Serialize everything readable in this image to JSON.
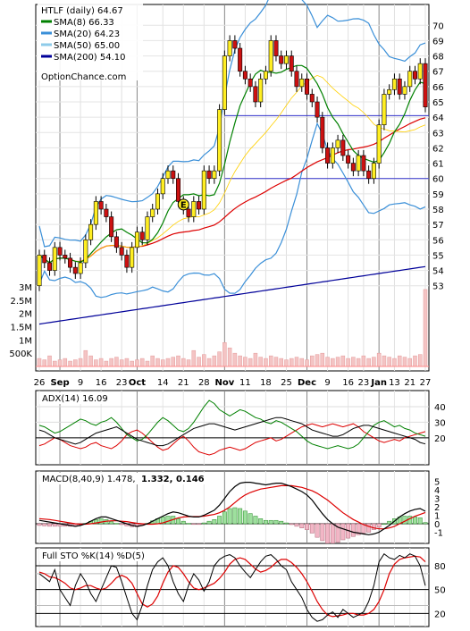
{
  "chart_data": [
    {
      "type": "candlestick",
      "panel": "price",
      "legend": [
        {
          "label": "HTLF (daily) 64.67",
          "color": null
        },
        {
          "label": "SMA(8) 66.33",
          "color": "#008000"
        },
        {
          "label": "SMA(20) 64.23",
          "color": "#3a8fd8"
        },
        {
          "label": "SMA(50) 65.00",
          "color": "#8ecbea"
        },
        {
          "label": "SMA(200) 54.10",
          "color": "#000099"
        }
      ],
      "watermark": "OptionChance.com",
      "y_ticks": [
        "70",
        "69",
        "68",
        "67",
        "66",
        "65",
        "64",
        "63",
        "62",
        "61",
        "60",
        "59",
        "58",
        "57",
        "56",
        "55",
        "54",
        "53"
      ],
      "ylim": [
        52.4,
        70.6
      ],
      "volume_ticks": [
        "3M",
        "2.5M",
        "2M",
        "1.5M",
        "1M",
        "500K"
      ],
      "x_ticks": [
        "26",
        "Sep",
        "9",
        "16",
        "23",
        "Oct",
        "14",
        "21",
        "28",
        "Nov",
        "11",
        "18",
        "25",
        "Dec",
        "9",
        "16",
        "23",
        "Jan",
        "13",
        "21",
        "27"
      ],
      "horizontal_lines": [
        64.1,
        60.0
      ],
      "earnings_marker": "E",
      "candles_open_close": [
        [
          53,
          55
        ],
        [
          55,
          54.5
        ],
        [
          54.5,
          54
        ],
        [
          54,
          55.5
        ],
        [
          55.5,
          55
        ],
        [
          55,
          54.8
        ],
        [
          54.8,
          54.2
        ],
        [
          54.2,
          53.8
        ],
        [
          53.8,
          54.5
        ],
        [
          54.5,
          56
        ],
        [
          56,
          57
        ],
        [
          57,
          58.5
        ],
        [
          58.5,
          58
        ],
        [
          58,
          57.5
        ],
        [
          57.5,
          56.2
        ],
        [
          56.2,
          55.5
        ],
        [
          55.5,
          55
        ],
        [
          55,
          54.2
        ],
        [
          54.2,
          55.5
        ],
        [
          55.5,
          56.5
        ],
        [
          56.5,
          56
        ],
        [
          56,
          57.5
        ],
        [
          57.5,
          58
        ],
        [
          58,
          59
        ],
        [
          59,
          60
        ],
        [
          60,
          60.5
        ],
        [
          60.5,
          60
        ],
        [
          60,
          58.5
        ],
        [
          58.5,
          58
        ],
        [
          58,
          57.5
        ],
        [
          57.5,
          58.5
        ],
        [
          58.5,
          58
        ],
        [
          58,
          60.5
        ],
        [
          60.5,
          60
        ],
        [
          60,
          60.5
        ],
        [
          60.5,
          64.5
        ],
        [
          64.5,
          68
        ],
        [
          68,
          69
        ],
        [
          69,
          68.5
        ],
        [
          68.5,
          67
        ],
        [
          67,
          66.5
        ],
        [
          66.5,
          66
        ],
        [
          66,
          65
        ],
        [
          65,
          66.5
        ],
        [
          66.5,
          67
        ],
        [
          67,
          69
        ],
        [
          69,
          68
        ],
        [
          68,
          67.5
        ],
        [
          67.5,
          68
        ],
        [
          68,
          67
        ],
        [
          67,
          66
        ],
        [
          66,
          66.5
        ],
        [
          66.5,
          65.5
        ],
        [
          65.5,
          65
        ],
        [
          65,
          64
        ],
        [
          64,
          62
        ],
        [
          62,
          61
        ],
        [
          61,
          62
        ],
        [
          62,
          62.5
        ],
        [
          62.5,
          61.5
        ],
        [
          61.5,
          61
        ],
        [
          61,
          60.5
        ],
        [
          60.5,
          61.5
        ],
        [
          61.5,
          60.5
        ],
        [
          60.5,
          60
        ],
        [
          60,
          61
        ],
        [
          61,
          63.5
        ],
        [
          63.5,
          65.5
        ],
        [
          65.5,
          65.8
        ],
        [
          65.8,
          66.5
        ],
        [
          66.5,
          65.5
        ],
        [
          65.5,
          66
        ],
        [
          66,
          67
        ],
        [
          67,
          66.5
        ],
        [
          66.5,
          67.5
        ],
        [
          67.5,
          64.67
        ]
      ]
    },
    {
      "type": "line",
      "panel": "adx",
      "legend": [
        {
          "label": "ADX(14) 16.09",
          "color": null
        }
      ],
      "y_ticks": [
        "40",
        "30",
        "20"
      ],
      "ylim": [
        5,
        48
      ],
      "series": [
        {
          "name": "ADX(14)",
          "color": "#000000",
          "values": [
            25,
            24,
            22,
            20,
            19,
            18,
            17,
            16,
            17,
            19,
            21,
            23,
            24,
            25,
            26,
            27,
            25,
            23,
            21,
            19,
            18,
            17,
            16,
            15,
            15,
            16,
            18,
            20,
            22,
            24,
            26,
            27,
            28,
            29,
            29,
            28,
            27,
            26,
            25,
            26,
            27,
            28,
            29,
            30,
            31,
            32,
            33,
            33,
            32,
            31,
            30,
            29,
            27,
            25,
            24,
            23,
            22,
            21,
            21,
            22,
            24,
            26,
            27,
            28,
            28,
            27,
            26,
            25,
            24,
            23,
            22,
            21,
            20,
            19,
            17,
            16.09
          ]
        },
        {
          "name": "+DI",
          "color": "#008000",
          "values": [
            28,
            27,
            25,
            23,
            24,
            26,
            28,
            30,
            32,
            31,
            29,
            28,
            30,
            31,
            33,
            30,
            26,
            22,
            20,
            18,
            19,
            22,
            26,
            30,
            33,
            31,
            28,
            25,
            24,
            26,
            30,
            35,
            40,
            44,
            42,
            38,
            36,
            34,
            36,
            38,
            37,
            35,
            33,
            32,
            30,
            29,
            31,
            30,
            28,
            26,
            24,
            21,
            18,
            16,
            15,
            14,
            13,
            14,
            15,
            14,
            13,
            14,
            16,
            20,
            24,
            28,
            30,
            31,
            29,
            27,
            28,
            26,
            25,
            23,
            22,
            21
          ]
        },
        {
          "name": "-DI",
          "color": "#dd0000",
          "values": [
            15,
            16,
            18,
            20,
            19,
            17,
            15,
            14,
            13,
            14,
            16,
            17,
            15,
            14,
            13,
            15,
            18,
            22,
            24,
            25,
            23,
            20,
            17,
            14,
            12,
            13,
            16,
            19,
            21,
            18,
            14,
            11,
            10,
            9,
            10,
            12,
            13,
            14,
            13,
            12,
            13,
            15,
            17,
            18,
            19,
            20,
            18,
            19,
            21,
            23,
            25,
            27,
            28,
            29,
            28,
            27,
            28,
            29,
            28,
            27,
            28,
            29,
            27,
            24,
            22,
            20,
            18,
            17,
            18,
            19,
            18,
            20,
            21,
            22,
            23,
            24
          ]
        }
      ]
    },
    {
      "type": "line+bar",
      "panel": "macd",
      "legend": [
        {
          "label": "MACD(8,40,9) 1.478,",
          "color": null
        },
        {
          "label": "1.332,",
          "color": "#dd0000"
        },
        {
          "label": "0.146",
          "color": "#0000cc"
        }
      ],
      "y_ticks": [
        "5",
        "4",
        "3",
        "2",
        "1",
        "0",
        "-1"
      ],
      "ylim": [
        -1.9,
        5.6
      ],
      "series": [
        {
          "name": "MACD",
          "color": "#000000",
          "values": [
            0.4,
            0.3,
            0.2,
            0.1,
            0,
            -0.1,
            -0.2,
            -0.3,
            -0.2,
            0,
            0.3,
            0.6,
            0.8,
            0.8,
            0.6,
            0.4,
            0.2,
            0,
            -0.2,
            -0.3,
            -0.2,
            0,
            0.3,
            0.6,
            0.9,
            1.2,
            1.4,
            1.3,
            1.1,
            0.9,
            0.8,
            0.8,
            1.0,
            1.3,
            1.6,
            2.2,
            3.0,
            3.8,
            4.4,
            4.8,
            4.9,
            4.9,
            4.8,
            4.7,
            4.6,
            4.7,
            4.8,
            4.8,
            4.6,
            4.4,
            4.1,
            3.8,
            3.4,
            2.8,
            2.0,
            1.2,
            0.5,
            0,
            -0.4,
            -0.6,
            -0.8,
            -1.0,
            -1.1,
            -1.2,
            -1.3,
            -1.2,
            -1.0,
            -0.6,
            -0.2,
            0.3,
            0.8,
            1.2,
            1.5,
            1.7,
            1.8,
            1.478
          ]
        },
        {
          "name": "Signal",
          "color": "#dd0000",
          "values": [
            0.6,
            0.55,
            0.5,
            0.4,
            0.3,
            0.2,
            0.1,
            0,
            -0.05,
            -0.05,
            0,
            0.1,
            0.2,
            0.3,
            0.35,
            0.35,
            0.3,
            0.25,
            0.15,
            0.05,
            0,
            -0.05,
            -0.05,
            0,
            0.1,
            0.3,
            0.5,
            0.7,
            0.8,
            0.85,
            0.85,
            0.85,
            0.9,
            1.0,
            1.1,
            1.3,
            1.6,
            2.0,
            2.5,
            3.0,
            3.4,
            3.7,
            3.9,
            4.1,
            4.2,
            4.3,
            4.4,
            4.5,
            4.5,
            4.5,
            4.4,
            4.3,
            4.1,
            3.9,
            3.6,
            3.2,
            2.8,
            2.3,
            1.8,
            1.3,
            0.9,
            0.5,
            0.2,
            -0.1,
            -0.3,
            -0.5,
            -0.6,
            -0.6,
            -0.5,
            -0.3,
            0,
            0.3,
            0.6,
            0.9,
            1.1,
            1.332
          ]
        }
      ]
    },
    {
      "type": "line",
      "panel": "stochastic",
      "legend": [
        {
          "label": "Full STO %K(14) %D(5)",
          "color": null
        }
      ],
      "y_ticks": [
        "80",
        "50",
        "20"
      ],
      "ylim": [
        8,
        98
      ],
      "series": [
        {
          "name": "%K",
          "color": "#000000",
          "values": [
            70,
            65,
            60,
            75,
            50,
            40,
            30,
            55,
            70,
            60,
            45,
            35,
            50,
            65,
            80,
            78,
            60,
            40,
            20,
            12,
            30,
            55,
            75,
            85,
            90,
            80,
            60,
            45,
            35,
            55,
            70,
            62,
            48,
            60,
            80,
            88,
            92,
            94,
            90,
            80,
            72,
            65,
            75,
            85,
            92,
            94,
            88,
            80,
            75,
            60,
            50,
            40,
            25,
            15,
            10,
            12,
            18,
            22,
            15,
            25,
            20,
            15,
            18,
            22,
            35,
            55,
            85,
            95,
            90,
            88,
            93,
            90,
            95,
            92,
            80,
            55
          ]
        },
        {
          "name": "%D",
          "color": "#dd0000",
          "values": [
            72,
            70,
            66,
            65,
            62,
            58,
            52,
            50,
            52,
            55,
            55,
            52,
            50,
            52,
            58,
            65,
            68,
            65,
            58,
            45,
            32,
            28,
            32,
            42,
            58,
            72,
            80,
            78,
            70,
            60,
            52,
            50,
            52,
            55,
            58,
            64,
            72,
            82,
            88,
            90,
            88,
            82,
            76,
            72,
            74,
            78,
            84,
            88,
            88,
            84,
            78,
            70,
            60,
            48,
            35,
            25,
            18,
            16,
            17,
            18,
            20,
            20,
            18,
            18,
            20,
            25,
            35,
            50,
            70,
            82,
            88,
            90,
            91,
            92,
            91,
            85
          ]
        }
      ]
    }
  ]
}
